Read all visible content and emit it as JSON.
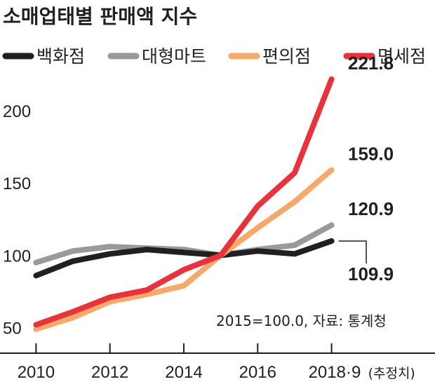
{
  "chart_data": {
    "type": "line",
    "title": "소매업태별 판매액 지수",
    "note": "2015=100.0, 자료: 통계청",
    "x_ticks": [
      {
        "x": 2010,
        "label": "2010",
        "suffix": ""
      },
      {
        "x": 2012,
        "label": "2012",
        "suffix": ""
      },
      {
        "x": 2014,
        "label": "2014",
        "suffix": ""
      },
      {
        "x": 2016,
        "label": "2016",
        "suffix": ""
      },
      {
        "x": 2018,
        "label": "2018·9",
        "suffix": "(추정치)"
      }
    ],
    "y_ticks": [
      "50",
      "100",
      "150",
      "200"
    ],
    "y_tick_values": [
      50,
      100,
      150,
      200
    ],
    "xlim": [
      2009.1,
      2020.8
    ],
    "ylim": [
      44,
      230
    ],
    "x": [
      2010,
      2011,
      2012,
      2013,
      2014,
      2015,
      2016,
      2017,
      2018
    ],
    "series": [
      {
        "name": "백화점",
        "color": "#231f20",
        "values": [
          86,
          96,
          101,
          104,
          102,
          100,
          103,
          101,
          109.9
        ],
        "end_label": "109.9"
      },
      {
        "name": "대형마트",
        "color": "#9a9a9a",
        "values": [
          95,
          103,
          106,
          105,
          104,
          100,
          104,
          107,
          120.9
        ],
        "end_label": "120.9"
      },
      {
        "name": "편의점",
        "color": "#f5a96b",
        "values": [
          49,
          57,
          68,
          73,
          79,
          100,
          119,
          137,
          159.0
        ],
        "end_label": "159.0"
      },
      {
        "name": "면세점",
        "color": "#e8323c",
        "values": [
          52,
          61,
          71,
          76,
          90,
          100,
          134,
          157,
          221.8
        ],
        "end_label": "221.8"
      }
    ],
    "grid": false,
    "legend_position": "top"
  }
}
